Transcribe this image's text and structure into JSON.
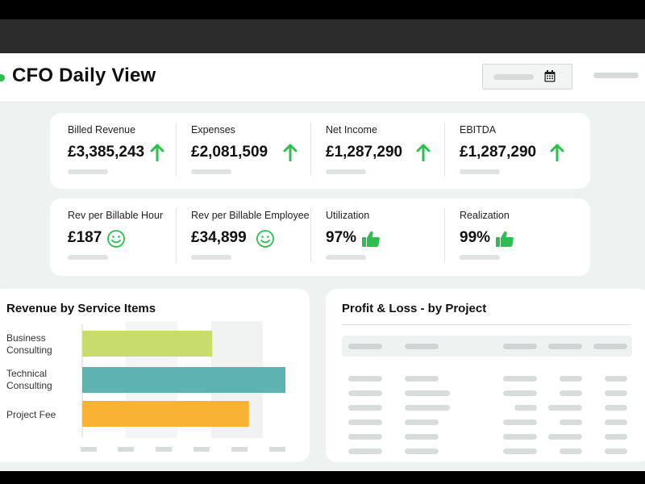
{
  "header": {
    "title": "CFO Daily View"
  },
  "kpis_top": [
    {
      "label": "Billed Revenue",
      "value": "£3,385,243",
      "icon": "arrow-up-icon"
    },
    {
      "label": "Expenses",
      "value": "£2,081,509",
      "icon": "arrow-up-icon"
    },
    {
      "label": "Net Income",
      "value": "£1,287,290",
      "icon": "arrow-up-icon"
    },
    {
      "label": "EBITDA",
      "value": "£1,287,290",
      "icon": "arrow-up-icon"
    }
  ],
  "kpis_bottom": [
    {
      "label": "Rev per Billable Hour",
      "value": "£187",
      "icon": "smiley-icon"
    },
    {
      "label": "Rev per Billable Employee",
      "value": "£34,899",
      "icon": "smiley-icon"
    },
    {
      "label": "Utilization",
      "value": "97%",
      "icon": "thumbs-up-icon"
    },
    {
      "label": "Realization",
      "value": "99%",
      "icon": "thumbs-up-icon"
    }
  ],
  "colors": {
    "accent_green": "#2cbf4f",
    "bar_business": "#c8dc6b",
    "bar_technical": "#5eb3b1",
    "bar_project": "#f9b233"
  },
  "revenue_chart": {
    "title": "Revenue by Service Items",
    "chart_data": {
      "type": "bar",
      "orientation": "horizontal",
      "categories": [
        "Business Consulting",
        "Technical Consulting",
        "Project Fee"
      ],
      "category_lines": [
        [
          "Business",
          "Consulting"
        ],
        [
          "Technical",
          "Consulting"
        ],
        [
          "Project Fee"
        ]
      ],
      "values": [
        16,
        25,
        20.5
      ],
      "xlim": [
        0,
        25
      ],
      "title": "Revenue by Service Items",
      "grid": true
    }
  },
  "profit_loss": {
    "title": "Profit & Loss - by Project"
  }
}
